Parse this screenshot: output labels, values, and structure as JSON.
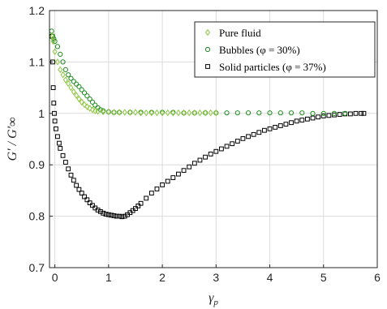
{
  "chart_data": {
    "type": "scatter",
    "xlabel": "γ_p",
    "xlabel_main": "γ",
    "xlabel_sub": "p",
    "ylabel": "G′ / G′∞",
    "xlim": [
      -0.1,
      6.0
    ],
    "ylim": [
      0.7,
      1.2
    ],
    "xticks": [
      0,
      1,
      2,
      3,
      4,
      5,
      6
    ],
    "yticks": [
      0.7,
      0.8,
      0.9,
      1,
      1.1,
      1.2
    ],
    "ytick_labels": [
      "0.7",
      "0.8",
      "0.9",
      "1",
      "1.1",
      "1.2"
    ],
    "grid": true,
    "legend_position": "top-right",
    "colors": {
      "pure_fluid": "#8dc63f",
      "bubbles": "#1e8c1e",
      "solid": "#000000"
    },
    "series": [
      {
        "name": "Pure fluid",
        "marker": "diamond",
        "color": "#8dc63f",
        "points": [
          [
            -0.05,
            1.15
          ],
          [
            -0.03,
            1.14
          ],
          [
            0.0,
            1.12
          ],
          [
            0.05,
            1.1
          ],
          [
            0.1,
            1.085
          ],
          [
            0.15,
            1.075
          ],
          [
            0.2,
            1.065
          ],
          [
            0.25,
            1.058
          ],
          [
            0.3,
            1.05
          ],
          [
            0.35,
            1.042
          ],
          [
            0.4,
            1.035
          ],
          [
            0.45,
            1.028
          ],
          [
            0.5,
            1.022
          ],
          [
            0.55,
            1.017
          ],
          [
            0.6,
            1.013
          ],
          [
            0.65,
            1.01
          ],
          [
            0.7,
            1.007
          ],
          [
            0.75,
            1.005
          ],
          [
            0.8,
            1.004
          ],
          [
            0.9,
            1.003
          ],
          [
            1.0,
            1.003
          ],
          [
            1.1,
            1.002
          ],
          [
            1.2,
            1.002
          ],
          [
            1.3,
            1.002
          ],
          [
            1.4,
            1.002
          ],
          [
            1.5,
            1.002
          ],
          [
            1.6,
            1.001
          ],
          [
            1.7,
            1.001
          ],
          [
            1.8,
            1.001
          ],
          [
            1.9,
            1.001
          ],
          [
            2.0,
            1.001
          ],
          [
            2.1,
            1.001
          ],
          [
            2.2,
            1.001
          ],
          [
            2.3,
            1.001
          ],
          [
            2.4,
            1.001
          ],
          [
            2.5,
            1.001
          ],
          [
            2.6,
            1.001
          ],
          [
            2.7,
            1.001
          ],
          [
            2.8,
            1.001
          ],
          [
            2.9,
            1.001
          ],
          [
            3.0,
            1.001
          ]
        ]
      },
      {
        "name": "Bubbles (φ = 30%)",
        "marker": "circle",
        "color": "#1e8c1e",
        "points": [
          [
            -0.06,
            1.16
          ],
          [
            -0.04,
            1.15
          ],
          [
            -0.02,
            1.145
          ],
          [
            0.0,
            1.14
          ],
          [
            0.05,
            1.13
          ],
          [
            0.1,
            1.115
          ],
          [
            0.15,
            1.1
          ],
          [
            0.2,
            1.085
          ],
          [
            0.25,
            1.075
          ],
          [
            0.3,
            1.068
          ],
          [
            0.35,
            1.062
          ],
          [
            0.4,
            1.057
          ],
          [
            0.45,
            1.052
          ],
          [
            0.5,
            1.046
          ],
          [
            0.55,
            1.04
          ],
          [
            0.6,
            1.034
          ],
          [
            0.65,
            1.028
          ],
          [
            0.7,
            1.022
          ],
          [
            0.75,
            1.016
          ],
          [
            0.8,
            1.011
          ],
          [
            0.85,
            1.007
          ],
          [
            0.9,
            1.005
          ],
          [
            1.0,
            1.003
          ],
          [
            1.1,
            1.002
          ],
          [
            1.2,
            1.002
          ],
          [
            1.4,
            1.002
          ],
          [
            1.6,
            1.002
          ],
          [
            1.8,
            1.002
          ],
          [
            2.0,
            1.002
          ],
          [
            2.2,
            1.002
          ],
          [
            2.4,
            1.001
          ],
          [
            2.6,
            1.001
          ],
          [
            2.8,
            1.001
          ],
          [
            3.0,
            1.001
          ],
          [
            3.2,
            1.001
          ],
          [
            3.4,
            1.001
          ],
          [
            3.6,
            1.001
          ],
          [
            3.8,
            1.001
          ],
          [
            4.0,
            1.001
          ],
          [
            4.2,
            1.001
          ],
          [
            4.4,
            1.001
          ],
          [
            4.6,
            1.001
          ],
          [
            4.8,
            1.0
          ],
          [
            5.0,
            1.0
          ],
          [
            5.2,
            1.0
          ],
          [
            5.4,
            1.0
          ]
        ]
      },
      {
        "name": "Solid particles (φ = 37%)",
        "marker": "square",
        "color": "#000000",
        "points": [
          [
            -0.05,
            1.15
          ],
          [
            -0.04,
            1.1
          ],
          [
            -0.03,
            1.05
          ],
          [
            -0.02,
            1.02
          ],
          [
            -0.01,
            1.0
          ],
          [
            0.0,
            0.985
          ],
          [
            0.02,
            0.97
          ],
          [
            0.05,
            0.955
          ],
          [
            0.08,
            0.942
          ],
          [
            0.1,
            0.932
          ],
          [
            0.15,
            0.918
          ],
          [
            0.2,
            0.905
          ],
          [
            0.25,
            0.892
          ],
          [
            0.3,
            0.88
          ],
          [
            0.35,
            0.87
          ],
          [
            0.4,
            0.86
          ],
          [
            0.45,
            0.852
          ],
          [
            0.5,
            0.845
          ],
          [
            0.55,
            0.838
          ],
          [
            0.6,
            0.832
          ],
          [
            0.65,
            0.826
          ],
          [
            0.7,
            0.821
          ],
          [
            0.75,
            0.816
          ],
          [
            0.8,
            0.812
          ],
          [
            0.85,
            0.809
          ],
          [
            0.9,
            0.806
          ],
          [
            0.95,
            0.804
          ],
          [
            1.0,
            0.803
          ],
          [
            1.05,
            0.802
          ],
          [
            1.1,
            0.801
          ],
          [
            1.15,
            0.8
          ],
          [
            1.2,
            0.8
          ],
          [
            1.25,
            0.799
          ],
          [
            1.3,
            0.8
          ],
          [
            1.35,
            0.803
          ],
          [
            1.4,
            0.807
          ],
          [
            1.45,
            0.811
          ],
          [
            1.5,
            0.815
          ],
          [
            1.55,
            0.82
          ],
          [
            1.6,
            0.825
          ],
          [
            1.7,
            0.835
          ],
          [
            1.8,
            0.845
          ],
          [
            1.9,
            0.853
          ],
          [
            2.0,
            0.861
          ],
          [
            2.1,
            0.868
          ],
          [
            2.2,
            0.875
          ],
          [
            2.3,
            0.882
          ],
          [
            2.4,
            0.889
          ],
          [
            2.5,
            0.896
          ],
          [
            2.6,
            0.903
          ],
          [
            2.7,
            0.909
          ],
          [
            2.8,
            0.915
          ],
          [
            2.9,
            0.921
          ],
          [
            3.0,
            0.926
          ],
          [
            3.1,
            0.931
          ],
          [
            3.2,
            0.936
          ],
          [
            3.3,
            0.941
          ],
          [
            3.4,
            0.946
          ],
          [
            3.5,
            0.951
          ],
          [
            3.6,
            0.955
          ],
          [
            3.7,
            0.959
          ],
          [
            3.8,
            0.963
          ],
          [
            3.9,
            0.967
          ],
          [
            4.0,
            0.97
          ],
          [
            4.1,
            0.973
          ],
          [
            4.2,
            0.976
          ],
          [
            4.3,
            0.979
          ],
          [
            4.4,
            0.982
          ],
          [
            4.5,
            0.985
          ],
          [
            4.6,
            0.987
          ],
          [
            4.7,
            0.989
          ],
          [
            4.8,
            0.991
          ],
          [
            4.9,
            0.993
          ],
          [
            5.0,
            0.995
          ],
          [
            5.1,
            0.996
          ],
          [
            5.2,
            0.997
          ],
          [
            5.3,
            0.998
          ],
          [
            5.4,
            0.999
          ],
          [
            5.5,
            0.999
          ],
          [
            5.6,
            1.0
          ],
          [
            5.7,
            1.0
          ],
          [
            5.75,
            1.0
          ]
        ]
      }
    ],
    "legend": [
      "Pure fluid",
      "Bubbles (φ = 30%)",
      "Solid particles (φ = 37%)"
    ]
  }
}
